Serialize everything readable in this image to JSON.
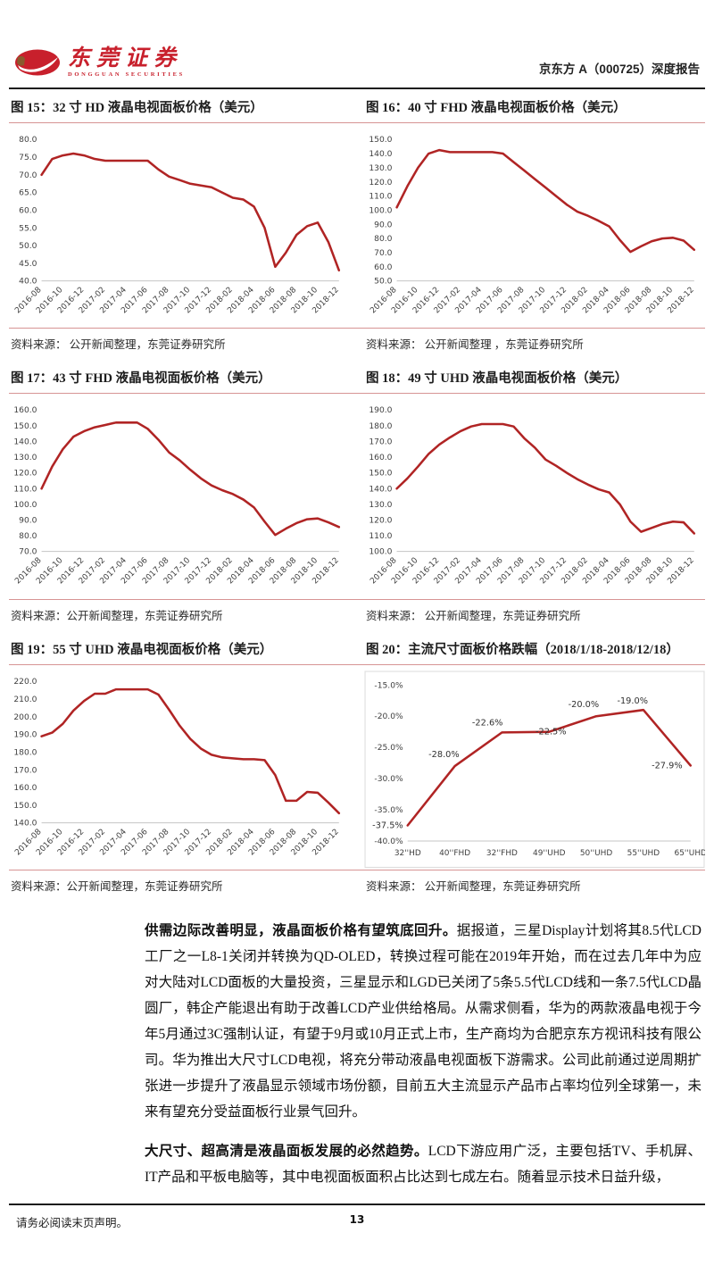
{
  "header": {
    "logo": {
      "cn": "东莞证券",
      "en": "DONGGUAN SECURITIES"
    },
    "report_title": "京东方 A（000725）深度报告"
  },
  "figures": [
    {
      "title": "图 15：32 寸 HD 液晶电视面板价格（美元）",
      "source": "资料来源： 公开新闻整理，东莞证券研究所"
    },
    {
      "title": "图 16：40 寸 FHD 液晶电视面板价格（美元）",
      "source": "资料来源： 公开新闻整理 ，东莞证券研究所"
    },
    {
      "title": "图 17：43 寸 FHD 液晶电视面板价格（美元）",
      "source": "资料来源：公开新闻整理，东莞证券研究所"
    },
    {
      "title": "图 18：49 寸 UHD 液晶电视面板价格（美元）",
      "source": "资料来源： 公开新闻整理，东莞证券研究所"
    },
    {
      "title": "图 19：55 寸 UHD 液晶电视面板价格（美元）",
      "source": "资料来源：公开新闻整理，东莞证券研究所"
    },
    {
      "title": "图 20：主流尺寸面板价格跌幅（2018/1/18-2018/12/18）",
      "source": "资料来源： 公开新闻整理，东莞证券研究所"
    }
  ],
  "chart_data": [
    {
      "type": "line",
      "title": "图 15：32 寸 HD 液晶电视面板价格（美元）",
      "x": [
        "2016-08",
        "2016-09",
        "2016-10",
        "2016-11",
        "2016-12",
        "2017-01",
        "2017-02",
        "2017-03",
        "2017-04",
        "2017-05",
        "2017-06",
        "2017-07",
        "2017-08",
        "2017-09",
        "2017-10",
        "2017-11",
        "2017-12",
        "2018-01",
        "2018-02",
        "2018-03",
        "2018-04",
        "2018-05",
        "2018-06",
        "2018-07",
        "2018-08",
        "2018-09",
        "2018-10",
        "2018-11",
        "2018-12"
      ],
      "values": [
        70,
        74.5,
        75.5,
        76,
        75.5,
        74.5,
        74,
        74,
        74,
        74,
        74,
        71.5,
        69.5,
        68.5,
        67.5,
        67,
        66.5,
        65,
        63.5,
        63,
        61,
        55,
        44,
        48,
        53,
        55.5,
        56.5,
        51,
        43
      ],
      "ylim": [
        40,
        80
      ],
      "ystep": 5,
      "ytick_format": "number",
      "xtick_every": 2,
      "xtick_rotate": true,
      "grid": false,
      "legend": "none"
    },
    {
      "type": "line",
      "title": "图 16：40 寸 FHD 液晶电视面板价格（美元）",
      "x": [
        "2016-08",
        "2016-09",
        "2016-10",
        "2016-11",
        "2016-12",
        "2017-01",
        "2017-02",
        "2017-03",
        "2017-04",
        "2017-05",
        "2017-06",
        "2017-07",
        "2017-08",
        "2017-09",
        "2017-10",
        "2017-11",
        "2017-12",
        "2018-01",
        "2018-02",
        "2018-03",
        "2018-04",
        "2018-05",
        "2018-06",
        "2018-07",
        "2018-08",
        "2018-09",
        "2018-10",
        "2018-11",
        "2018-12"
      ],
      "values": [
        102,
        117,
        130,
        140,
        142.5,
        141,
        141,
        141,
        141,
        141,
        140,
        134,
        128,
        122,
        116,
        110,
        104,
        99,
        96,
        92.5,
        88.5,
        79,
        70.5,
        74.5,
        78,
        80,
        80.5,
        78.5,
        72
      ],
      "ylim": [
        50,
        150
      ],
      "ystep": 10,
      "ytick_format": "number",
      "xtick_every": 2,
      "xtick_rotate": true,
      "grid": false,
      "legend": "none"
    },
    {
      "type": "line",
      "title": "图 17：43 寸 FHD 液晶电视面板价格（美元）",
      "x": [
        "2016-08",
        "2016-09",
        "2016-10",
        "2016-11",
        "2016-12",
        "2017-01",
        "2017-02",
        "2017-03",
        "2017-04",
        "2017-05",
        "2017-06",
        "2017-07",
        "2017-08",
        "2017-09",
        "2017-10",
        "2017-11",
        "2017-12",
        "2018-01",
        "2018-02",
        "2018-03",
        "2018-04",
        "2018-05",
        "2018-06",
        "2018-07",
        "2018-08",
        "2018-09",
        "2018-10",
        "2018-11",
        "2018-12"
      ],
      "values": [
        110,
        124,
        135,
        143,
        146.5,
        149,
        150.5,
        152,
        152,
        152,
        148,
        141,
        133,
        128,
        122,
        116.5,
        112,
        109,
        106.5,
        103,
        98,
        89,
        80.5,
        84.5,
        88,
        90.5,
        91,
        88.5,
        85.5
      ],
      "ylim": [
        70,
        160
      ],
      "ystep": 10,
      "ytick_format": "number",
      "xtick_every": 2,
      "xtick_rotate": true,
      "grid": false,
      "legend": "none"
    },
    {
      "type": "line",
      "title": "图 18：49 寸 UHD 液晶电视面板价格（美元）",
      "x": [
        "2016-08",
        "2016-09",
        "2016-10",
        "2016-11",
        "2016-12",
        "2017-01",
        "2017-02",
        "2017-03",
        "2017-04",
        "2017-05",
        "2017-06",
        "2017-07",
        "2017-08",
        "2017-09",
        "2017-10",
        "2017-11",
        "2017-12",
        "2018-01",
        "2018-02",
        "2018-03",
        "2018-04",
        "2018-05",
        "2018-06",
        "2018-07",
        "2018-08",
        "2018-09",
        "2018-10",
        "2018-11",
        "2018-12"
      ],
      "values": [
        140,
        146.5,
        154,
        162,
        168,
        172.5,
        176.5,
        179.5,
        181,
        181,
        181,
        179.5,
        172,
        166,
        158.5,
        154.5,
        150,
        146,
        142.5,
        139.5,
        137.5,
        130,
        119,
        112.5,
        115,
        117.5,
        119,
        118.5,
        111.5
      ],
      "ylim": [
        100,
        190
      ],
      "ystep": 10,
      "ytick_format": "number",
      "xtick_every": 2,
      "xtick_rotate": true,
      "grid": false,
      "legend": "none"
    },
    {
      "type": "line",
      "title": "图 19：55 寸 UHD 液晶电视面板价格（美元）",
      "x": [
        "2016-08",
        "2016-09",
        "2016-10",
        "2016-11",
        "2016-12",
        "2017-01",
        "2017-02",
        "2017-03",
        "2017-04",
        "2017-05",
        "2017-06",
        "2017-07",
        "2017-08",
        "2017-09",
        "2017-10",
        "2017-11",
        "2017-12",
        "2018-01",
        "2018-02",
        "2018-03",
        "2018-04",
        "2018-05",
        "2018-06",
        "2018-07",
        "2018-08",
        "2018-09",
        "2018-10",
        "2018-11",
        "2018-12"
      ],
      "values": [
        189,
        191,
        196,
        203.5,
        209,
        213,
        213,
        215.5,
        215.5,
        215.5,
        215.5,
        212.5,
        204,
        195,
        187.5,
        182,
        178.5,
        177,
        176.5,
        176,
        176,
        175.5,
        167,
        152.5,
        152.5,
        157.5,
        157,
        151.5,
        145.5
      ],
      "ylim": [
        140,
        220
      ],
      "ystep": 10,
      "ytick_format": "number",
      "xtick_every": 2,
      "xtick_rotate": true,
      "grid": false,
      "legend": "none"
    },
    {
      "type": "line",
      "title": "图 20：主流尺寸面板价格跌幅（2018/1/18-2018/12/18）",
      "x": [
        "32''HD",
        "40''FHD",
        "32''FHD",
        "49''UHD",
        "50''UHD",
        "55''UHD",
        "65''UHD"
      ],
      "values": [
        -37.5,
        -28.0,
        -22.6,
        -22.5,
        -20.0,
        -19.0,
        -27.9
      ],
      "ylim": [
        -40,
        -15
      ],
      "ystep": 5,
      "ytick_format": "percent",
      "xtick_every": 1,
      "xtick_rotate": false,
      "grid": false,
      "legend": "none",
      "point_labels": true,
      "label_offsets": [
        [
          -5,
          3,
          "end"
        ],
        [
          -12,
          -10,
          "middle"
        ],
        [
          -16,
          -8,
          "middle"
        ],
        [
          2,
          3,
          "middle"
        ],
        [
          -14,
          -10,
          "middle"
        ],
        [
          -12,
          -7,
          "middle"
        ],
        [
          -9,
          3,
          "end"
        ]
      ],
      "box": true
    }
  ],
  "colors": {
    "line": "#b02424",
    "separator": "#d79494",
    "brand_red": "#c8202c",
    "axis_gray": "#c4c4c4"
  },
  "paragraphs": [
    {
      "lead": "供需边际改善明显，液晶面板价格有望筑底回升。",
      "body": "据报道，三星Display计划将其8.5代LCD工厂之一L8-1关闭并转换为QD-OLED，转换过程可能在2019年开始，而在过去几年中为应对大陆对LCD面板的大量投资，三星显示和LGD已关闭了5条5.5代LCD线和一条7.5代LCD晶圆厂，韩企产能退出有助于改善LCD产业供给格局。从需求侧看，华为的两款液晶电视于今年5月通过3C强制认证，有望于9月或10月正式上市，生产商均为合肥京东方视讯科技有限公司。华为推出大尺寸LCD电视，将充分带动液晶电视面板下游需求。公司此前通过逆周期扩张进一步提升了液晶显示领域市场份额，目前五大主流显示产品市占率均位列全球第一，未来有望充分受益面板行业景气回升。"
    },
    {
      "lead": "大尺寸、超高清是液晶面板发展的必然趋势。",
      "body": "LCD下游应用广泛，主要包括TV、手机屏、IT产品和平板电脑等，其中电视面板面积占比达到七成左右。随着显示技术日益升级，"
    }
  ],
  "footer": {
    "disclaimer": "请务必阅读末页声明。",
    "page_number": "13"
  }
}
